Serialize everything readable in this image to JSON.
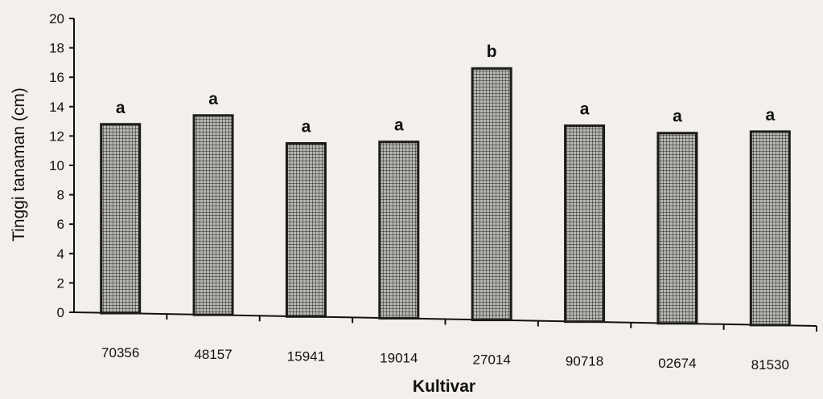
{
  "chart_data": {
    "type": "bar",
    "xlabel": "Kultivar",
    "ylabel": "Tinggi tanaman (cm)",
    "ylim": [
      0,
      20
    ],
    "yticks": [
      "0",
      "2",
      "4",
      "6",
      "8",
      "10",
      "12",
      "14",
      "16",
      "18",
      "20"
    ],
    "categories": [
      "70356",
      "48157",
      "15941",
      "19014",
      "27014",
      "90718",
      "02674",
      "81530"
    ],
    "values": [
      12.8,
      13.4,
      11.5,
      11.6,
      16.6,
      12.7,
      12.2,
      12.3
    ],
    "annotations": [
      "a",
      "a",
      "a",
      "a",
      "b",
      "a",
      "a",
      "a"
    ],
    "grid": false,
    "legend": "none",
    "colors": {
      "bar_fill": "#a7a7a2",
      "bar_edge": "#1c1c1c",
      "axis": "#111111",
      "background": "#f3efea"
    }
  }
}
